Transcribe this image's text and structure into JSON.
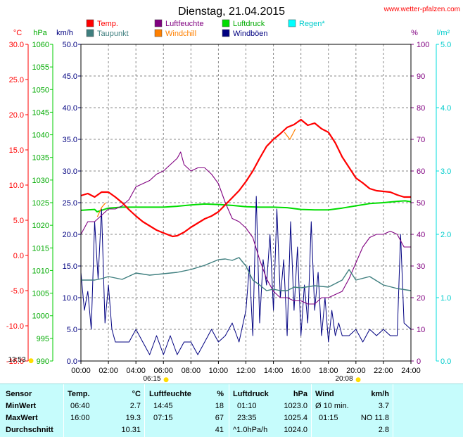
{
  "title": "Dienstag, 21.04.2015",
  "brand": "www.wetter-pfalzen.com",
  "units": {
    "temp": "°C",
    "pressure": "hPa",
    "wind": "km/h",
    "humidity": "%",
    "rain": "l/m²"
  },
  "legend": [
    {
      "label": "Temp.",
      "color": "#ff0000"
    },
    {
      "label": "Taupunkt",
      "color": "#3f7f7f"
    },
    {
      "label": "Luftfeuchte",
      "color": "#800080"
    },
    {
      "label": "Windchill",
      "color": "#ff8000"
    },
    {
      "label": "Luftdruck",
      "color": "#00dd00"
    },
    {
      "label": "Windböen",
      "color": "#000080"
    },
    {
      "label": "Regen*",
      "color": "#00ffff"
    }
  ],
  "axes": {
    "temp_ticks": [
      "30.0",
      "25.0",
      "20.0",
      "15.0",
      "10.0",
      "5.0",
      "0.0",
      "-5.0",
      "-10.0",
      "-15.0"
    ],
    "pressure_ticks": [
      "1060",
      "1055",
      "1050",
      "1045",
      "1040",
      "1035",
      "1030",
      "1025",
      "1020",
      "1015",
      "1010",
      "1005",
      "1000",
      "995",
      "990"
    ],
    "wind_ticks": [
      "50.0",
      "45.0",
      "40.0",
      "35.0",
      "30.0",
      "25.0",
      "20.0",
      "15.0",
      "10.0",
      "5.0",
      "0.0"
    ],
    "humidity_ticks": [
      "100",
      "90",
      "80",
      "70",
      "60",
      "50",
      "40",
      "30",
      "20",
      "10",
      "0"
    ],
    "rain_ticks": [
      "5.0",
      "4.0",
      "3.0",
      "2.0",
      "1.0",
      "0.0"
    ],
    "time_ticks": [
      "00:00",
      "02:00",
      "04:00",
      "06:00",
      "08:00",
      "10:00",
      "12:00",
      "14:00",
      "16:00",
      "18:00",
      "20:00",
      "22:00",
      "24:00"
    ]
  },
  "sun": {
    "sunrise": "06:15",
    "sunset": "20:08",
    "daylight": "13:53"
  },
  "chart_data": {
    "type": "line",
    "title": "Dienstag, 21.04.2015",
    "xlim": [
      0,
      24
    ],
    "series": [
      {
        "name": "Temp.",
        "axis": "temp",
        "ylim": [
          -15,
          30
        ],
        "x": [
          0,
          0.5,
          1,
          1.5,
          2,
          2.5,
          3,
          3.5,
          4,
          4.5,
          5,
          5.5,
          6,
          6.67,
          7,
          7.5,
          8,
          8.5,
          9,
          9.5,
          10,
          10.5,
          11,
          11.5,
          12,
          12.5,
          13,
          13.5,
          14,
          14.5,
          15,
          15.5,
          16,
          16.5,
          17,
          17.5,
          18,
          18.5,
          19,
          19.5,
          20,
          20.5,
          21,
          21.5,
          22,
          22.5,
          23,
          23.5,
          24
        ],
        "y": [
          8.5,
          8.8,
          8.3,
          9.0,
          9.0,
          8.3,
          7.5,
          6.5,
          5.6,
          4.8,
          4.2,
          3.6,
          3.2,
          2.7,
          2.8,
          3.3,
          4.0,
          4.6,
          5.2,
          5.6,
          6.2,
          7.2,
          8.2,
          9.2,
          10.5,
          12.0,
          13.8,
          15.5,
          16.5,
          17.3,
          18.2,
          18.6,
          19.3,
          18.5,
          18.8,
          18.0,
          17.5,
          16.0,
          14.0,
          12.5,
          11.0,
          10.3,
          9.5,
          9.2,
          9.1,
          9.0,
          8.6,
          8.3,
          8.3
        ]
      },
      {
        "name": "Taupunkt",
        "axis": "temp",
        "ylim": [
          -15,
          30
        ],
        "x": [
          0,
          0.5,
          1,
          1.5,
          2,
          3,
          4,
          5,
          6,
          7,
          8,
          8.5,
          9,
          9.5,
          10,
          10.5,
          11,
          11.5,
          12,
          12.5,
          13,
          13.5,
          14,
          14.5,
          15,
          15.5,
          16,
          17,
          18,
          19,
          19.5,
          20,
          21,
          22,
          23,
          24
        ],
        "y": [
          -3.5,
          -3.5,
          -3.5,
          -3.3,
          -3.0,
          -3.4,
          -2.5,
          -2.8,
          -2.6,
          -2.4,
          -2.0,
          -1.7,
          -1.4,
          -1.0,
          -0.6,
          -0.5,
          -0.7,
          -0.3,
          -1.5,
          -3.5,
          -4.2,
          -5.0,
          -4.8,
          -5.0,
          -5.0,
          -4.5,
          -4.6,
          -4.3,
          -4.5,
          -3.5,
          -2.0,
          -3.5,
          -3.0,
          -4.2,
          -4.7,
          -5.0
        ]
      },
      {
        "name": "Luftfeuchte",
        "axis": "humidity",
        "ylim": [
          0,
          100
        ],
        "x": [
          0,
          0.5,
          1,
          1.5,
          2,
          2.5,
          3,
          3.5,
          4,
          4.5,
          5,
          5.5,
          6,
          6.5,
          7,
          7.25,
          7.5,
          8,
          8.5,
          9,
          9.5,
          10,
          10.5,
          11,
          11.5,
          12,
          12.5,
          13,
          13.5,
          14,
          14.5,
          15,
          15.5,
          16,
          16.5,
          17,
          17.5,
          18,
          18.5,
          19,
          19.5,
          20,
          20.5,
          21,
          21.5,
          22,
          22.5,
          23,
          23.5,
          24
        ],
        "y": [
          40,
          44,
          44,
          46,
          48,
          48,
          49,
          51,
          55,
          56,
          57,
          59,
          60,
          62,
          64,
          66,
          62,
          60,
          61,
          61,
          59,
          56,
          50,
          45,
          44,
          42,
          39,
          32,
          26,
          22,
          20,
          20,
          19,
          19,
          18,
          18,
          20,
          20,
          21,
          22,
          26,
          31,
          36,
          39,
          40,
          40,
          41,
          40,
          36,
          36
        ]
      },
      {
        "name": "Windchill",
        "axis": "temp",
        "ylim": [
          -15,
          30
        ],
        "x": [
          1.2,
          1.5,
          1.8,
          14.8,
          15.2,
          15.6
        ],
        "y": [
          5.5,
          6.8,
          7.5,
          17.5,
          16.5,
          18.0
        ]
      },
      {
        "name": "Luftdruck",
        "axis": "pressure",
        "ylim": [
          990,
          1060
        ],
        "x": [
          0,
          1,
          1.17,
          2,
          3,
          4,
          5,
          6,
          7,
          8,
          9,
          10,
          11,
          12,
          13,
          14,
          15,
          16,
          17,
          18,
          19,
          20,
          21,
          22,
          23,
          23.58,
          24
        ],
        "y": [
          1023.3,
          1023.5,
          1023.0,
          1023.8,
          1024.0,
          1024.0,
          1024.0,
          1024.0,
          1024.2,
          1024.5,
          1024.7,
          1024.6,
          1024.4,
          1024.1,
          1024.0,
          1024.0,
          1023.9,
          1023.5,
          1023.4,
          1023.4,
          1023.8,
          1024.3,
          1024.8,
          1025.0,
          1025.3,
          1025.4,
          1025.2
        ]
      },
      {
        "name": "Windböen",
        "axis": "wind",
        "ylim": [
          0,
          50
        ],
        "x": [
          0,
          0.25,
          0.5,
          0.75,
          1,
          1.25,
          1.5,
          1.75,
          2,
          2.25,
          2.5,
          3,
          3.5,
          4,
          4.5,
          5,
          5.5,
          6,
          6.5,
          7,
          7.5,
          8,
          8.5,
          9,
          9.5,
          10,
          10.5,
          11,
          11.5,
          12,
          12.25,
          12.5,
          12.75,
          13,
          13.25,
          13.5,
          13.75,
          14,
          14.25,
          14.5,
          14.75,
          15,
          15.25,
          15.5,
          15.75,
          16,
          16.25,
          16.5,
          16.75,
          17,
          17.25,
          17.5,
          17.75,
          18,
          18.25,
          18.5,
          18.75,
          19,
          19.5,
          20,
          20.5,
          21,
          21.5,
          22,
          22.5,
          23,
          23.25,
          23.5,
          24
        ],
        "y": [
          14,
          8,
          11,
          5,
          22,
          13,
          24,
          6,
          12,
          5,
          3,
          3,
          3,
          5,
          3,
          1,
          4,
          1,
          4,
          1,
          3,
          3,
          1,
          3,
          5,
          3,
          4,
          6,
          3,
          8,
          15,
          4,
          26,
          6,
          16,
          12,
          20,
          8,
          24,
          10,
          16,
          4,
          22,
          8,
          18,
          4,
          12,
          6,
          22,
          8,
          14,
          4,
          10,
          3,
          8,
          4,
          6,
          4,
          4,
          5,
          3,
          5,
          4,
          5,
          4,
          4,
          20,
          6,
          5
        ]
      }
    ]
  },
  "stats": {
    "headers": {
      "sensor": "Sensor",
      "temp": "Temp.",
      "temp_unit": "°C",
      "hum": "Luftfeuchte",
      "hum_unit": "%",
      "press": "Luftdruck",
      "press_unit": "hPa",
      "wind": "Wind",
      "wind_unit": "km/h"
    },
    "rows": [
      {
        "label": "MinWert",
        "t_time": "06:40",
        "t_val": "2.7",
        "h_time": "14:45",
        "h_val": "18",
        "p_time": "01:10",
        "p_val": "1023.0",
        "w_time": "Ø 10 min.",
        "w_val": "3.7"
      },
      {
        "label": "MaxWert",
        "t_time": "16:00",
        "t_val": "19.3",
        "h_time": "07:15",
        "h_val": "67",
        "p_time": "23:35",
        "p_val": "1025.4",
        "w_time": "01:15",
        "w_val": "NO 11.8"
      },
      {
        "label": "Durchschnitt",
        "t_time": "",
        "t_val": "10.31",
        "h_time": "",
        "h_val": "41",
        "p_time": "^1.0hPa/h",
        "p_val": "1024.0",
        "w_time": "",
        "w_val": "2.8"
      }
    ]
  }
}
